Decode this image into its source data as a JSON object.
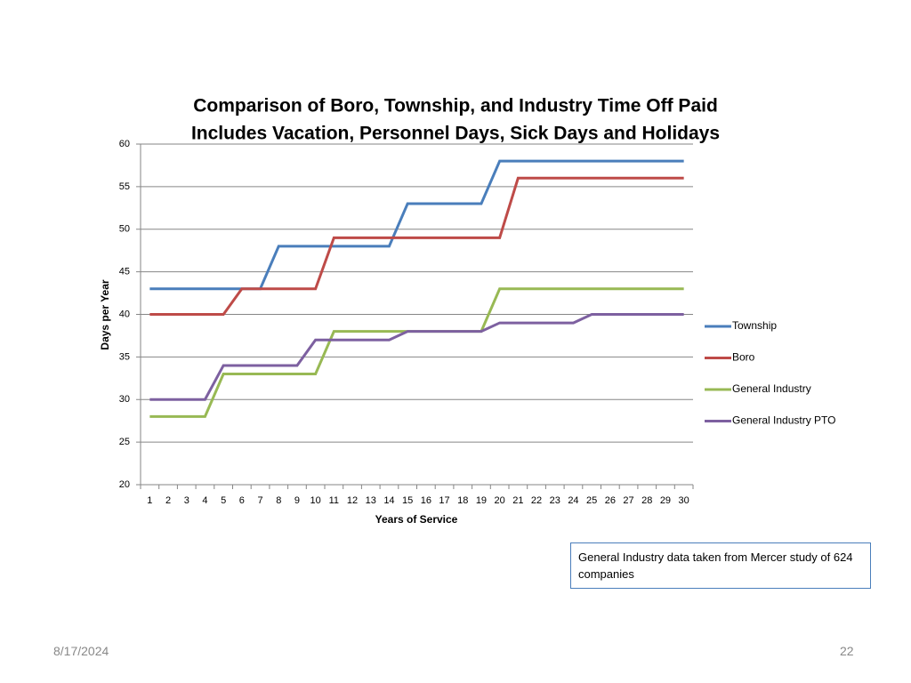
{
  "chart_data": {
    "type": "line",
    "title": "Comparison of Boro, Township, and Industry Time Off Paid",
    "subtitle": "Includes Vacation, Personnel Days, Sick Days and Holidays",
    "x_label": "Years of Service",
    "y_label": "Days per Year",
    "categories": [
      1,
      2,
      3,
      4,
      5,
      6,
      7,
      8,
      9,
      10,
      11,
      12,
      13,
      14,
      15,
      16,
      17,
      18,
      19,
      20,
      21,
      22,
      23,
      24,
      25,
      26,
      27,
      28,
      29,
      30
    ],
    "series": [
      {
        "name": "Township",
        "color": "#4a7ebb",
        "values": [
          43,
          43,
          43,
          43,
          43,
          43,
          43,
          48,
          48,
          48,
          48,
          48,
          48,
          48,
          53,
          53,
          53,
          53,
          53,
          58,
          58,
          58,
          58,
          58,
          58,
          58,
          58,
          58,
          58,
          58
        ]
      },
      {
        "name": "Boro",
        "color": "#be4b48",
        "values": [
          40,
          40,
          40,
          40,
          40,
          43,
          43,
          43,
          43,
          43,
          49,
          49,
          49,
          49,
          49,
          49,
          49,
          49,
          49,
          49,
          56,
          56,
          56,
          56,
          56,
          56,
          56,
          56,
          56,
          56
        ]
      },
      {
        "name": "General Industry",
        "color": "#98b954",
        "values": [
          28,
          28,
          28,
          28,
          33,
          33,
          33,
          33,
          33,
          33,
          38,
          38,
          38,
          38,
          38,
          38,
          38,
          38,
          38,
          43,
          43,
          43,
          43,
          43,
          43,
          43,
          43,
          43,
          43,
          43
        ]
      },
      {
        "name": "General Industry PTO",
        "color": "#7d60a0",
        "values": [
          30,
          30,
          30,
          30,
          34,
          34,
          34,
          34,
          34,
          37,
          37,
          37,
          37,
          37,
          38,
          38,
          38,
          38,
          38,
          39,
          39,
          39,
          39,
          39,
          40,
          40,
          40,
          40,
          40,
          40
        ]
      }
    ],
    "ylim": [
      20,
      60
    ],
    "yticks": [
      20,
      25,
      30,
      35,
      40,
      45,
      50,
      55,
      60
    ],
    "grid": true,
    "legend": "right"
  },
  "note": "General Industry data taken  from Mercer study of  624 companies",
  "footer": {
    "date": "8/17/2024",
    "page": "22"
  }
}
